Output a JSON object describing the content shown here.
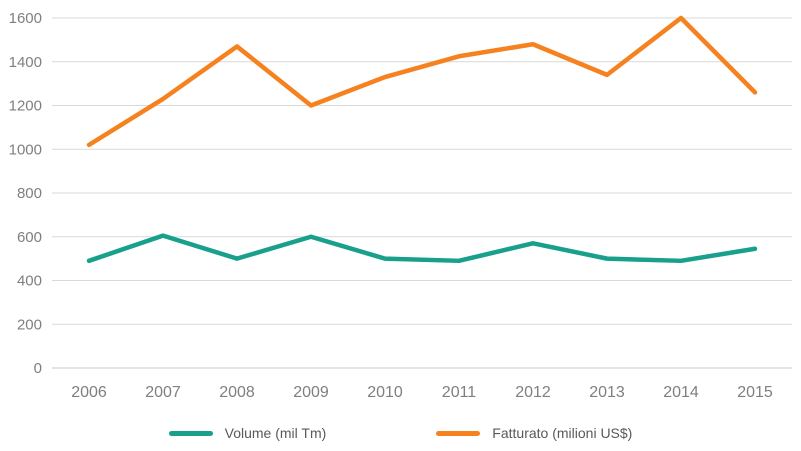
{
  "chart_data": {
    "type": "line",
    "title": "",
    "xlabel": "",
    "ylabel": "",
    "categories": [
      "2006",
      "2007",
      "2008",
      "2009",
      "2010",
      "2011",
      "2012",
      "2013",
      "2014",
      "2015"
    ],
    "series": [
      {
        "name": "Volume (mil Tm)",
        "color": "#18A08C",
        "values": [
          490,
          605,
          500,
          600,
          500,
          490,
          570,
          500,
          490,
          545
        ]
      },
      {
        "name": "Fatturato (milioni US$)",
        "color": "#F5821F",
        "values": [
          1020,
          1230,
          1470,
          1200,
          1330,
          1425,
          1480,
          1340,
          1600,
          1260
        ]
      }
    ],
    "ylim": [
      0,
      1600
    ],
    "ytick_step": 200,
    "ytick_labels": [
      "0",
      "200",
      "400",
      "600",
      "800",
      "1000",
      "1200",
      "1400",
      "1600"
    ],
    "grid": true,
    "grid_color": "#d9d9d9",
    "axis_color": "#c9c9c9",
    "tick_color": "#7f7f7f",
    "legend_position": "bottom"
  }
}
